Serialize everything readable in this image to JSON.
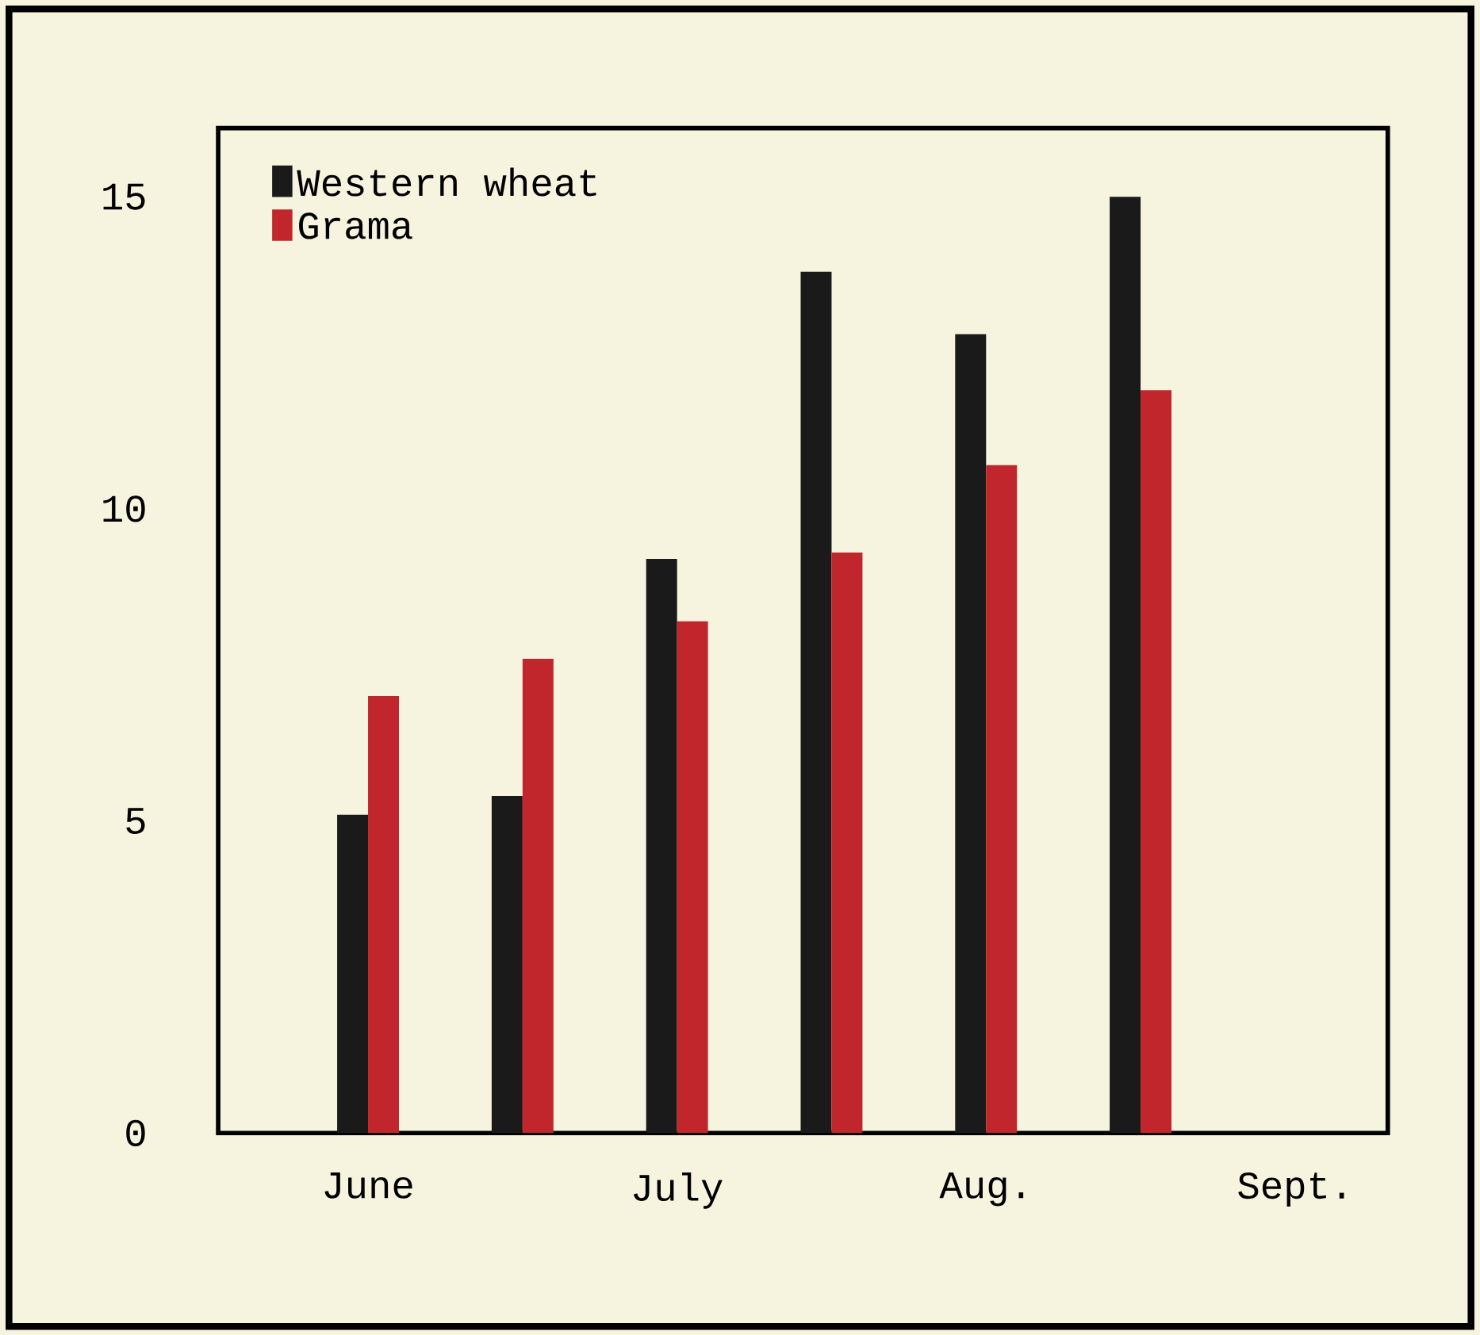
{
  "chart_data": {
    "type": "bar",
    "categories": [
      "June",
      null,
      "July",
      null,
      "Aug.",
      null,
      "Sept."
    ],
    "series": [
      {
        "name": "Western wheat",
        "color": "#1a1a1a",
        "values": [
          5.1,
          5.4,
          9.2,
          13.8,
          12.8,
          15.0,
          null
        ]
      },
      {
        "name": "Grama",
        "color": "#c0262b",
        "values": [
          7.0,
          7.6,
          8.2,
          9.3,
          10.7,
          11.9,
          null
        ]
      }
    ],
    "ylim": [
      0,
      16.1
    ],
    "yticks": [
      0,
      5,
      10,
      15
    ],
    "legend": "top left"
  }
}
